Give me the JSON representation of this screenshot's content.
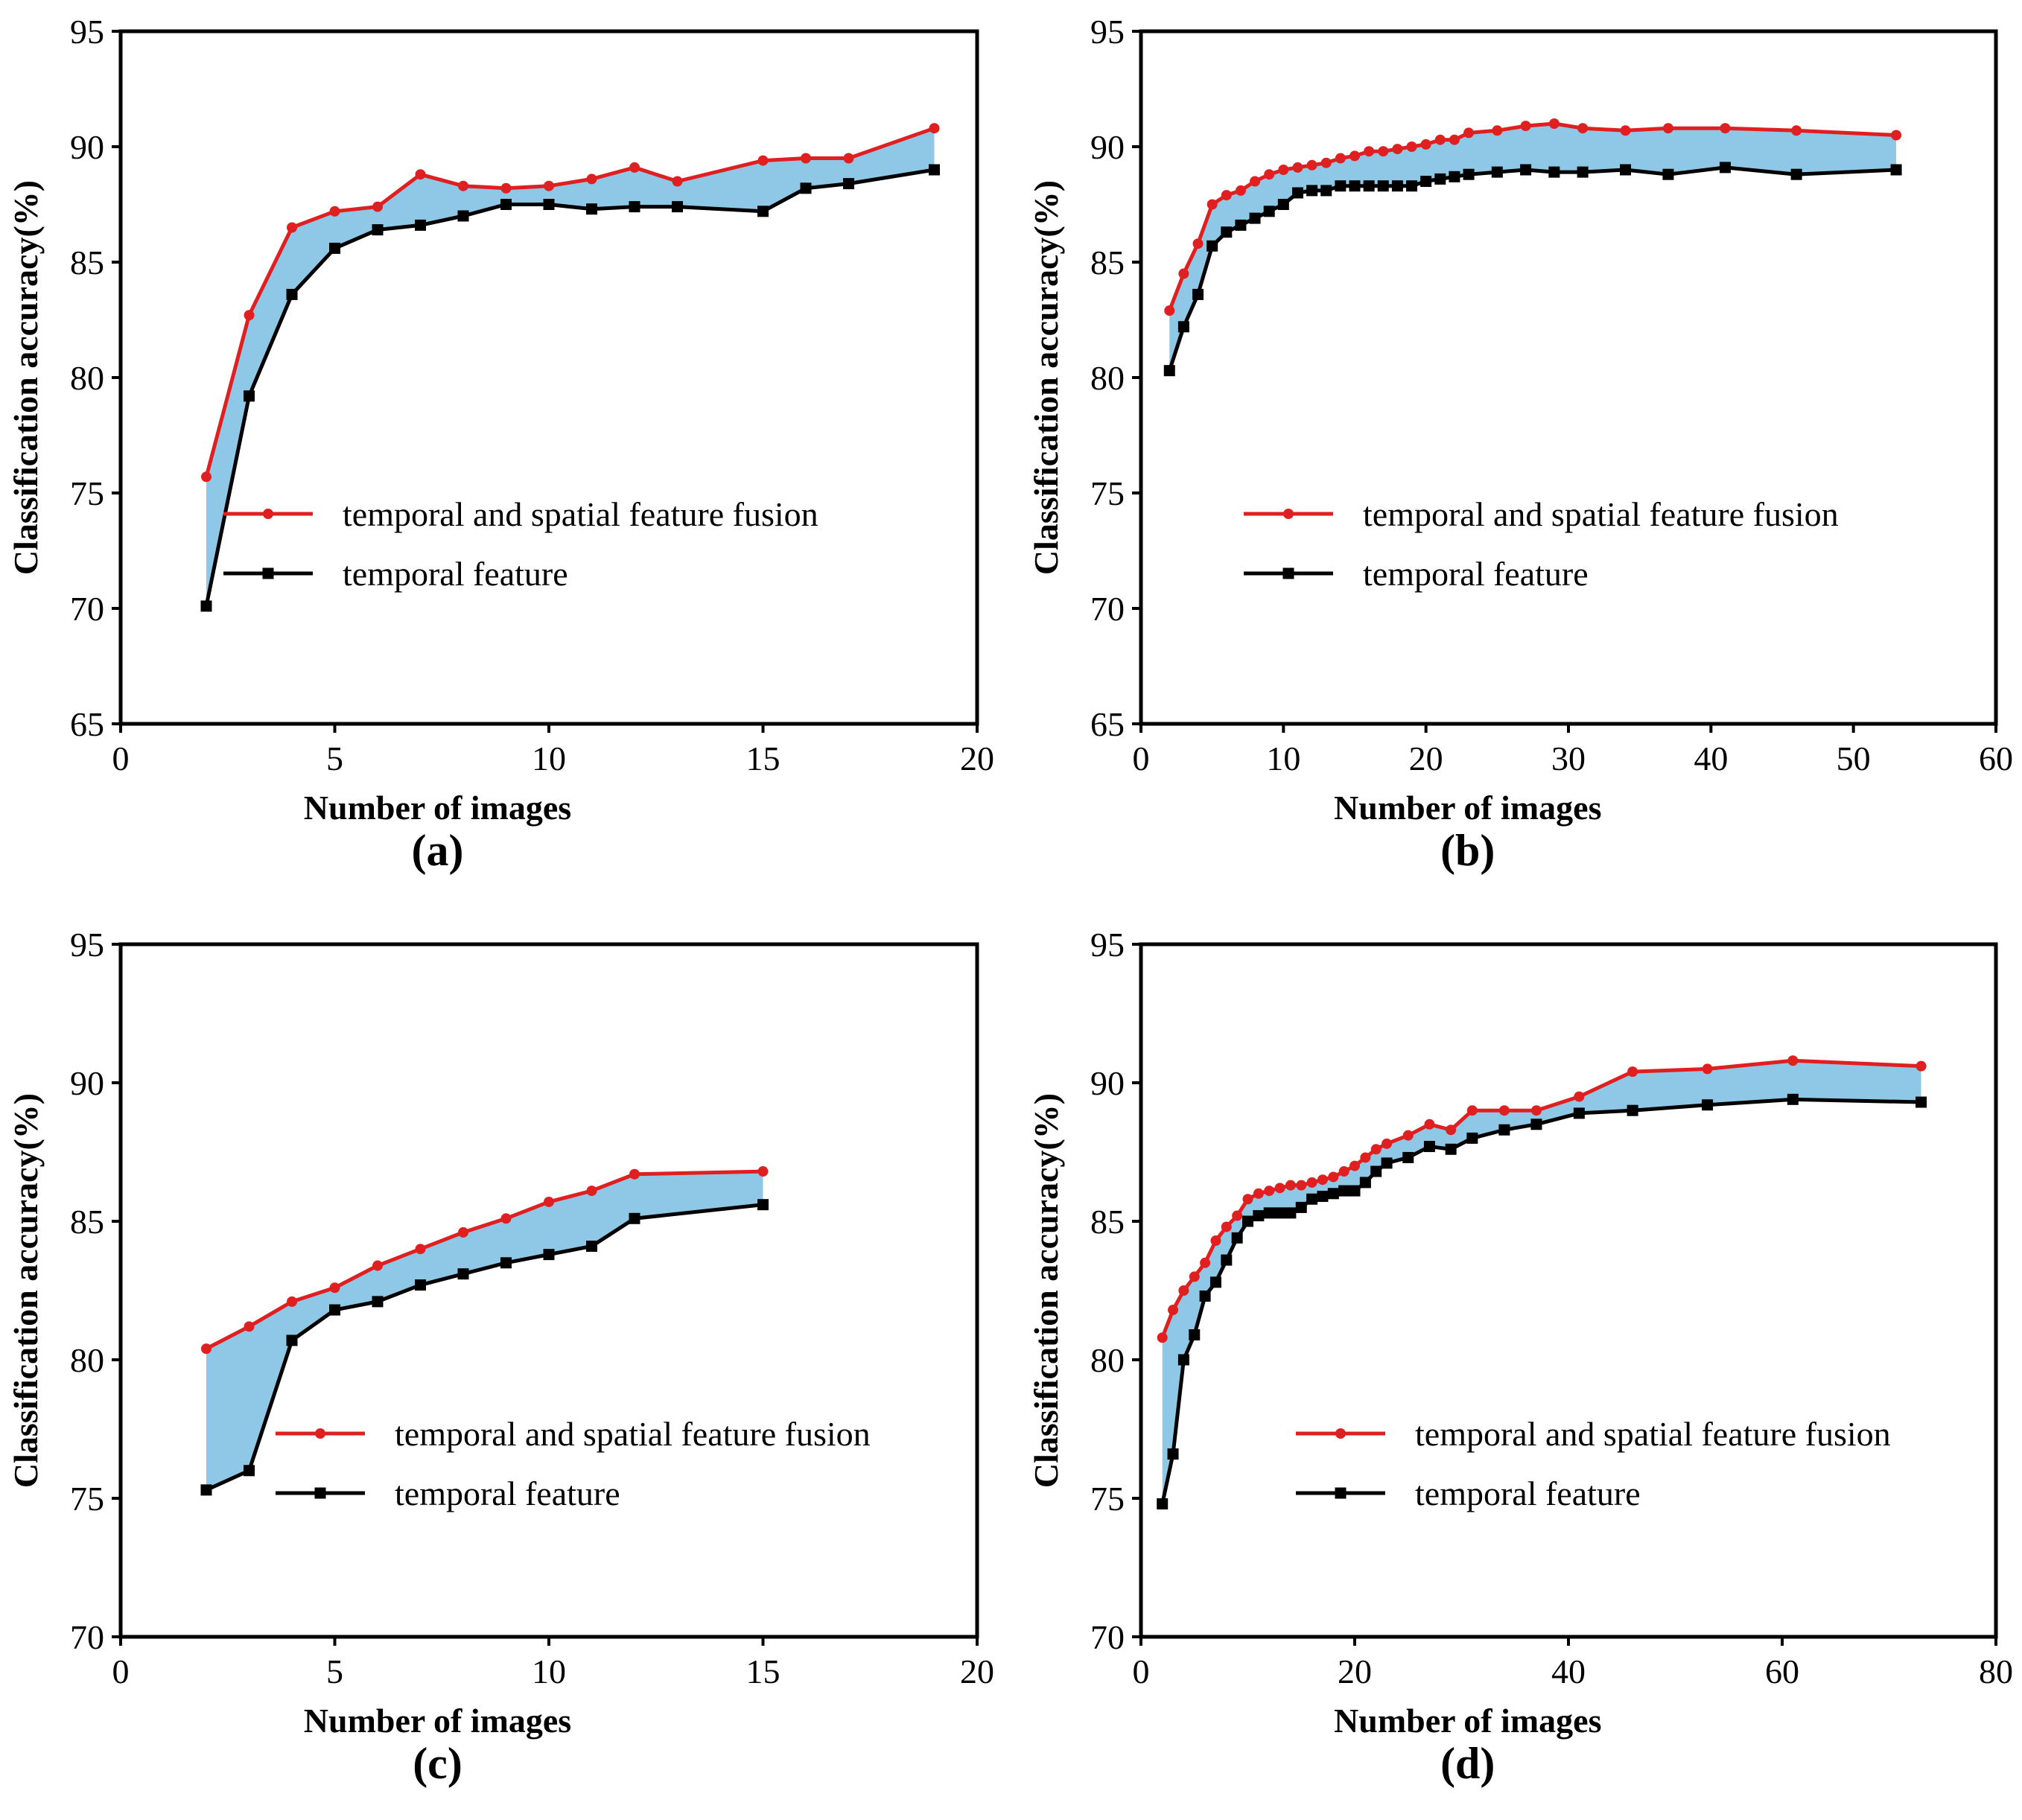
{
  "colors": {
    "fusion": "#e02020",
    "temporal": "#000000",
    "fill": "#8ec8e6"
  },
  "chart_data": [
    {
      "type": "line",
      "caption": "(a)",
      "xlabel": "Number of images",
      "ylabel": "Classification accuracy(%)",
      "xlim": [
        0,
        20
      ],
      "xticks": [
        0,
        5,
        10,
        15,
        20
      ],
      "ylim": [
        65,
        95
      ],
      "yticks": [
        65,
        70,
        75,
        80,
        85,
        90,
        95
      ],
      "fill_between": true,
      "series": [
        {
          "name": "temporal and spatial feature fusion",
          "marker": "circle",
          "x": [
            2,
            3,
            4,
            5,
            6,
            7,
            8,
            9,
            10,
            11,
            12,
            13,
            15,
            16,
            17,
            19
          ],
          "y": [
            75.7,
            82.7,
            86.5,
            87.2,
            87.4,
            88.8,
            88.3,
            88.2,
            88.3,
            88.6,
            89.1,
            88.5,
            89.4,
            89.5,
            89.5,
            90.8
          ]
        },
        {
          "name": "temporal feature",
          "marker": "square",
          "x": [
            2,
            3,
            4,
            5,
            6,
            7,
            8,
            9,
            10,
            11,
            12,
            13,
            15,
            16,
            17,
            19
          ],
          "y": [
            70.1,
            79.2,
            83.6,
            85.6,
            86.4,
            86.6,
            87.0,
            87.5,
            87.5,
            87.3,
            87.4,
            87.4,
            87.2,
            88.2,
            88.4,
            89.0
          ]
        }
      ]
    },
    {
      "type": "line",
      "caption": "(b)",
      "xlabel": "Number of images",
      "ylabel": "Classification accuracy(%)",
      "xlim": [
        0,
        60
      ],
      "xticks": [
        0,
        10,
        20,
        30,
        40,
        50,
        60
      ],
      "ylim": [
        65,
        95
      ],
      "yticks": [
        65,
        70,
        75,
        80,
        85,
        90,
        95
      ],
      "fill_between": true,
      "series": [
        {
          "name": "temporal and spatial feature fusion",
          "marker": "circle",
          "x": [
            2,
            3,
            4,
            5,
            6,
            7,
            8,
            9,
            10,
            11,
            12,
            13,
            14,
            15,
            16,
            17,
            18,
            19,
            20,
            21,
            22,
            23,
            25,
            27,
            29,
            31,
            34,
            37,
            41,
            46,
            53
          ],
          "y": [
            82.9,
            84.5,
            85.8,
            87.5,
            87.9,
            88.1,
            88.5,
            88.8,
            89.0,
            89.1,
            89.2,
            89.3,
            89.5,
            89.6,
            89.8,
            89.8,
            89.9,
            90.0,
            90.1,
            90.3,
            90.3,
            90.6,
            90.7,
            90.9,
            91.0,
            90.8,
            90.7,
            90.8,
            90.8,
            90.7,
            90.5
          ]
        },
        {
          "name": "temporal feature",
          "marker": "square",
          "x": [
            2,
            3,
            4,
            5,
            6,
            7,
            8,
            9,
            10,
            11,
            12,
            13,
            14,
            15,
            16,
            17,
            18,
            19,
            20,
            21,
            22,
            23,
            25,
            27,
            29,
            31,
            34,
            37,
            41,
            46,
            53
          ],
          "y": [
            80.3,
            82.2,
            83.6,
            85.7,
            86.3,
            86.6,
            86.9,
            87.2,
            87.5,
            88.0,
            88.1,
            88.1,
            88.3,
            88.3,
            88.3,
            88.3,
            88.3,
            88.3,
            88.5,
            88.6,
            88.7,
            88.8,
            88.9,
            89.0,
            88.9,
            88.9,
            89.0,
            88.8,
            89.1,
            88.8,
            89.0
          ]
        }
      ]
    },
    {
      "type": "line",
      "caption": "(c)",
      "xlabel": "Number of images",
      "ylabel": "Classification accuracy(%)",
      "xlim": [
        0,
        20
      ],
      "xticks": [
        0,
        5,
        10,
        15,
        20
      ],
      "ylim": [
        70,
        95
      ],
      "yticks": [
        70,
        75,
        80,
        85,
        90,
        95
      ],
      "fill_between": true,
      "series": [
        {
          "name": "temporal and spatial feature fusion",
          "marker": "circle",
          "x": [
            2,
            3,
            4,
            5,
            6,
            7,
            8,
            9,
            10,
            11,
            12,
            15
          ],
          "y": [
            80.4,
            81.2,
            82.1,
            82.6,
            83.4,
            84.0,
            84.6,
            85.1,
            85.7,
            86.1,
            86.7,
            86.8
          ]
        },
        {
          "name": "temporal feature",
          "marker": "square",
          "x": [
            2,
            3,
            4,
            5,
            6,
            7,
            8,
            9,
            10,
            11,
            12,
            15
          ],
          "y": [
            75.3,
            76.0,
            80.7,
            81.8,
            82.1,
            82.7,
            83.1,
            83.5,
            83.8,
            84.1,
            85.1,
            85.6
          ]
        }
      ]
    },
    {
      "type": "line",
      "caption": "(d)",
      "xlabel": "Number of images",
      "ylabel": "Classification accuracy(%)",
      "xlim": [
        0,
        80
      ],
      "xticks": [
        0,
        20,
        40,
        60,
        80
      ],
      "ylim": [
        70,
        95
      ],
      "yticks": [
        70,
        75,
        80,
        85,
        90,
        95
      ],
      "fill_between": true,
      "series": [
        {
          "name": "temporal and spatial feature fusion",
          "marker": "circle",
          "x": [
            2,
            3,
            4,
            5,
            6,
            7,
            8,
            9,
            10,
            11,
            12,
            13,
            14,
            15,
            16,
            17,
            18,
            19,
            20,
            21,
            22,
            23,
            25,
            27,
            29,
            31,
            34,
            37,
            41,
            46,
            53,
            61,
            73
          ],
          "y": [
            80.8,
            81.8,
            82.5,
            83.0,
            83.5,
            84.3,
            84.8,
            85.2,
            85.8,
            86.0,
            86.1,
            86.2,
            86.3,
            86.3,
            86.4,
            86.5,
            86.6,
            86.8,
            87.0,
            87.3,
            87.6,
            87.8,
            88.1,
            88.5,
            88.3,
            89.0,
            89.0,
            89.0,
            89.5,
            90.4,
            90.5,
            90.8,
            90.6
          ]
        },
        {
          "name": "temporal feature",
          "marker": "square",
          "x": [
            2,
            3,
            4,
            5,
            6,
            7,
            8,
            9,
            10,
            11,
            12,
            13,
            14,
            15,
            16,
            17,
            18,
            19,
            20,
            21,
            22,
            23,
            25,
            27,
            29,
            31,
            34,
            37,
            41,
            46,
            53,
            61,
            73
          ],
          "y": [
            74.8,
            76.6,
            80.0,
            80.9,
            82.3,
            82.8,
            83.6,
            84.4,
            85.0,
            85.2,
            85.3,
            85.3,
            85.3,
            85.5,
            85.8,
            85.9,
            86.0,
            86.1,
            86.1,
            86.4,
            86.8,
            87.1,
            87.3,
            87.7,
            87.6,
            88.0,
            88.3,
            88.5,
            88.9,
            89.0,
            89.2,
            89.4,
            89.3
          ]
        }
      ]
    }
  ]
}
